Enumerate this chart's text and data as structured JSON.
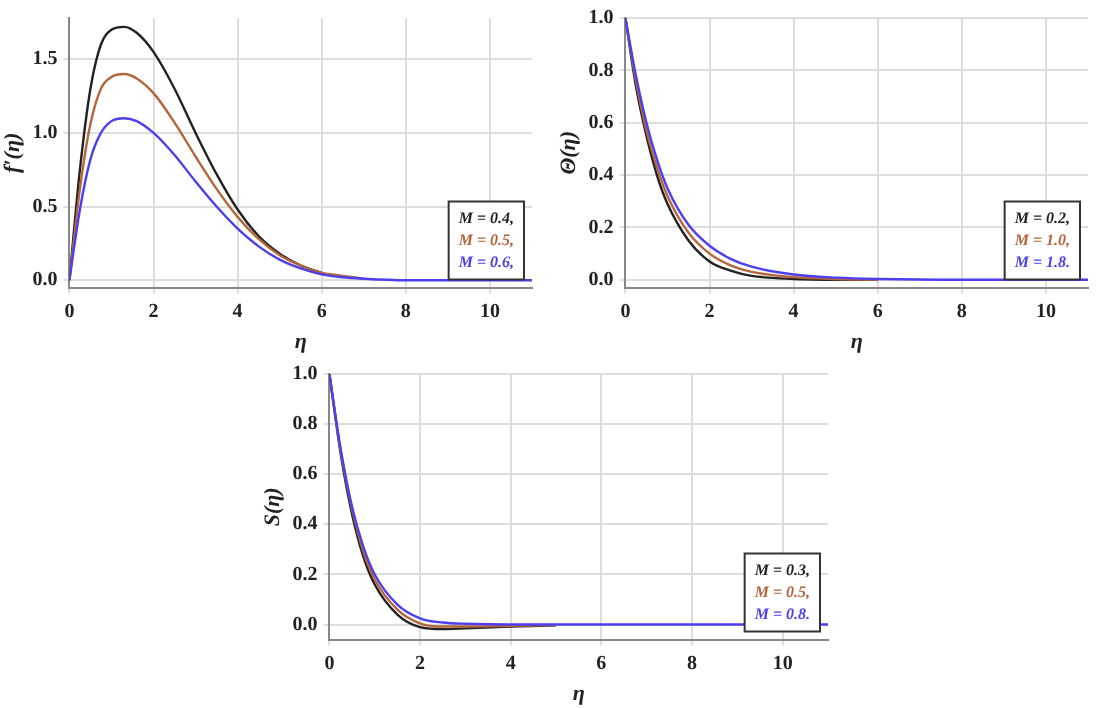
{
  "chart_data": [
    {
      "type": "line",
      "xlabel": "η",
      "ylabel": "f′(η)",
      "xlim": [
        0,
        11
      ],
      "xticks": [
        0,
        2,
        4,
        6,
        8,
        10
      ],
      "ylim": [
        -0.05,
        1.78
      ],
      "yticks": [
        {
          "value": 0,
          "label": "0.0"
        },
        {
          "value": 0.5,
          "label": "0.5"
        },
        {
          "value": 1,
          "label": "1.0"
        },
        {
          "value": 1.5,
          "label": "1.5"
        }
      ],
      "grid": true,
      "legend": "bottom right",
      "marker": "none",
      "line_style": "solid",
      "x": [
        0,
        0.25,
        0.5,
        0.75,
        1,
        1.3,
        1.6,
        2,
        2.5,
        3,
        3.5,
        4,
        4.5,
        5,
        5.5,
        6,
        6.5,
        7,
        8,
        9,
        10,
        11
      ],
      "series": [
        {
          "name": "M = 0.4,",
          "color": "#222222",
          "values": [
            0,
            0.75,
            1.3,
            1.6,
            1.7,
            1.72,
            1.68,
            1.55,
            1.3,
            1.0,
            0.72,
            0.48,
            0.3,
            0.18,
            0.1,
            0.05,
            null,
            null,
            null,
            null,
            null,
            null
          ]
        },
        {
          "name": "M = 0.5,",
          "color": "#b5653a",
          "values": [
            0,
            0.62,
            1.06,
            1.3,
            1.38,
            1.4,
            1.37,
            1.27,
            1.07,
            0.84,
            0.62,
            0.43,
            0.28,
            0.17,
            0.1,
            0.05,
            0.03,
            0.01,
            null,
            null,
            null,
            null
          ]
        },
        {
          "name": "M = 0.6,",
          "color": "#4b3ff0",
          "values": [
            0,
            0.48,
            0.82,
            1.0,
            1.08,
            1.1,
            1.08,
            1.0,
            0.85,
            0.67,
            0.5,
            0.35,
            0.23,
            0.14,
            0.08,
            0.04,
            0.02,
            0.01,
            0,
            0,
            0,
            0
          ]
        }
      ]
    },
    {
      "type": "line",
      "xlabel": "η",
      "ylabel": "Θ(η)",
      "xlim": [
        0,
        11
      ],
      "xticks": [
        0,
        2,
        4,
        6,
        8,
        10
      ],
      "ylim": [
        -0.03,
        1.0
      ],
      "yticks": [
        {
          "value": 0,
          "label": "0.0"
        },
        {
          "value": 0.2,
          "label": "0.2"
        },
        {
          "value": 0.4,
          "label": "0.4"
        },
        {
          "value": 0.6,
          "label": "0.6"
        },
        {
          "value": 0.8,
          "label": "0.8"
        },
        {
          "value": 1,
          "label": "1.0"
        }
      ],
      "grid": true,
      "legend": "bottom right",
      "marker": "none",
      "line_style": "solid",
      "x": [
        0,
        0.25,
        0.5,
        0.75,
        1,
        1.5,
        2,
        2.5,
        3,
        4,
        5,
        6,
        8,
        11
      ],
      "series": [
        {
          "name": "M = 0.2,",
          "color": "#222222",
          "values": [
            1,
            0.74,
            0.55,
            0.4,
            0.29,
            0.15,
            0.07,
            0.035,
            0.015,
            0.003,
            0,
            0,
            null,
            null
          ]
        },
        {
          "name": "M = 1.0,",
          "color": "#b5653a",
          "values": [
            1,
            0.76,
            0.57,
            0.43,
            0.32,
            0.18,
            0.1,
            0.055,
            0.03,
            0.01,
            0.003,
            0,
            null,
            null
          ]
        },
        {
          "name": "M = 1.8.",
          "color": "#4b3ff0",
          "values": [
            1,
            0.78,
            0.6,
            0.46,
            0.35,
            0.21,
            0.13,
            0.08,
            0.05,
            0.02,
            0.008,
            0.003,
            0,
            0
          ]
        }
      ]
    },
    {
      "type": "line",
      "xlabel": "η",
      "ylabel": "S(η)",
      "xlim": [
        0,
        11
      ],
      "xticks": [
        0,
        2,
        4,
        6,
        8,
        10
      ],
      "ylim": [
        -0.06,
        1.0
      ],
      "yticks": [
        {
          "value": 0,
          "label": "0.0"
        },
        {
          "value": 0.2,
          "label": "0.2"
        },
        {
          "value": 0.4,
          "label": "0.4"
        },
        {
          "value": 0.6,
          "label": "0.6"
        },
        {
          "value": 0.8,
          "label": "0.8"
        },
        {
          "value": 1,
          "label": "1.0"
        }
      ],
      "grid": true,
      "legend": "bottom right",
      "marker": "none",
      "line_style": "solid",
      "x": [
        0,
        0.25,
        0.5,
        0.75,
        1,
        1.5,
        2,
        2.5,
        3,
        4,
        5,
        6,
        8,
        11
      ],
      "series": [
        {
          "name": "M = 0.3,",
          "color": "#222222",
          "values": [
            1,
            0.68,
            0.44,
            0.27,
            0.16,
            0.04,
            -0.01,
            -0.018,
            -0.015,
            -0.008,
            -0.003,
            null,
            null,
            null
          ]
        },
        {
          "name": "M = 0.5,",
          "color": "#b5653a",
          "values": [
            1,
            0.69,
            0.46,
            0.29,
            0.18,
            0.06,
            0.005,
            -0.008,
            -0.008,
            -0.005,
            -0.002,
            null,
            null,
            null
          ]
        },
        {
          "name": "M = 0.8.",
          "color": "#4b3ff0",
          "values": [
            1,
            0.7,
            0.47,
            0.31,
            0.2,
            0.08,
            0.025,
            0.008,
            0.003,
            0,
            0,
            0,
            0,
            0
          ]
        }
      ]
    }
  ]
}
